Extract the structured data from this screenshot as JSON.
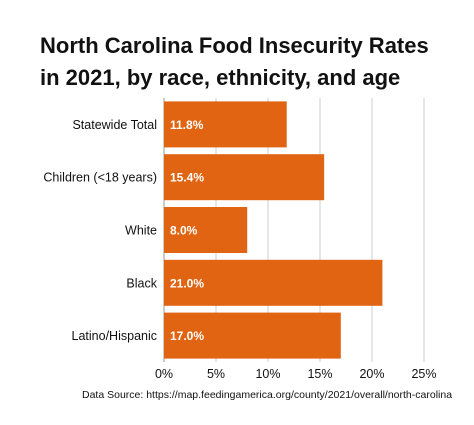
{
  "title_lines": [
    "North Carolina Food Insecurity Rates",
    "in 2021, by race, ethnicity, and age"
  ],
  "source": "Data Source: https://map.feedingamerica.org/county/2021/overall/north-carolina",
  "colors": {
    "bar": "#e06411",
    "grid": "#cccccc",
    "text": "#111111",
    "label": "#ffffff"
  },
  "chart_data": {
    "type": "bar",
    "orientation": "horizontal",
    "title": "North Carolina Food Insecurity Rates in 2021, by race, ethnicity, and age",
    "categories": [
      "Statewide Total",
      "Children (<18 years)",
      "White",
      "Black",
      "Latino/Hispanic"
    ],
    "values": [
      11.8,
      15.4,
      8.0,
      21.0,
      17.0
    ],
    "value_labels": [
      "11.8%",
      "15.4%",
      "8.0%",
      "21.0%",
      "17.0%"
    ],
    "xticks": [
      0,
      5,
      10,
      15,
      20,
      25
    ],
    "xtick_labels": [
      "0%",
      "5%",
      "10%",
      "15%",
      "20%",
      "25%"
    ],
    "xlim": [
      0,
      25
    ],
    "xlabel": "",
    "ylabel": "",
    "grid": "vertical",
    "legend": "none"
  }
}
